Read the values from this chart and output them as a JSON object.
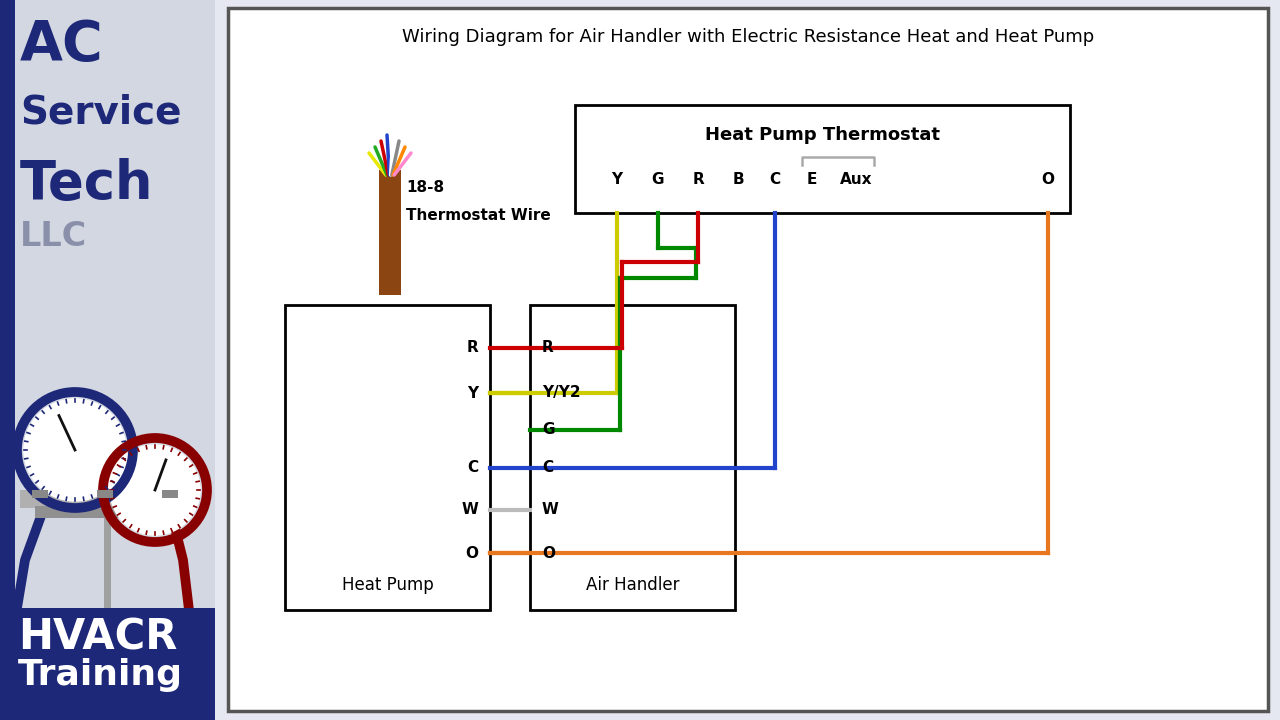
{
  "title": "Wiring Diagram for Air Handler with Electric Resistance Heat and Heat Pump",
  "left_bg": "#d2d7e2",
  "left_dark": "#1e2878",
  "right_bg": "#e5e8f0",
  "diagram_bg": "#ffffff",
  "wire_colors": {
    "R": "#cc0000",
    "Y": "#cccc00",
    "G": "#008800",
    "B": "#2244cc",
    "C": "#2244cc",
    "W": "#bbbbbb",
    "O": "#e87820",
    "brown": "#8B4513"
  },
  "thermostat_terminals": [
    "Y",
    "G",
    "R",
    "B",
    "C",
    "E",
    "Aux",
    "O"
  ],
  "hp_terminals": [
    "R",
    "Y",
    "C",
    "W",
    "O"
  ],
  "ah_terminals": [
    "R",
    "Y/Y2",
    "G",
    "C",
    "W",
    "O"
  ]
}
